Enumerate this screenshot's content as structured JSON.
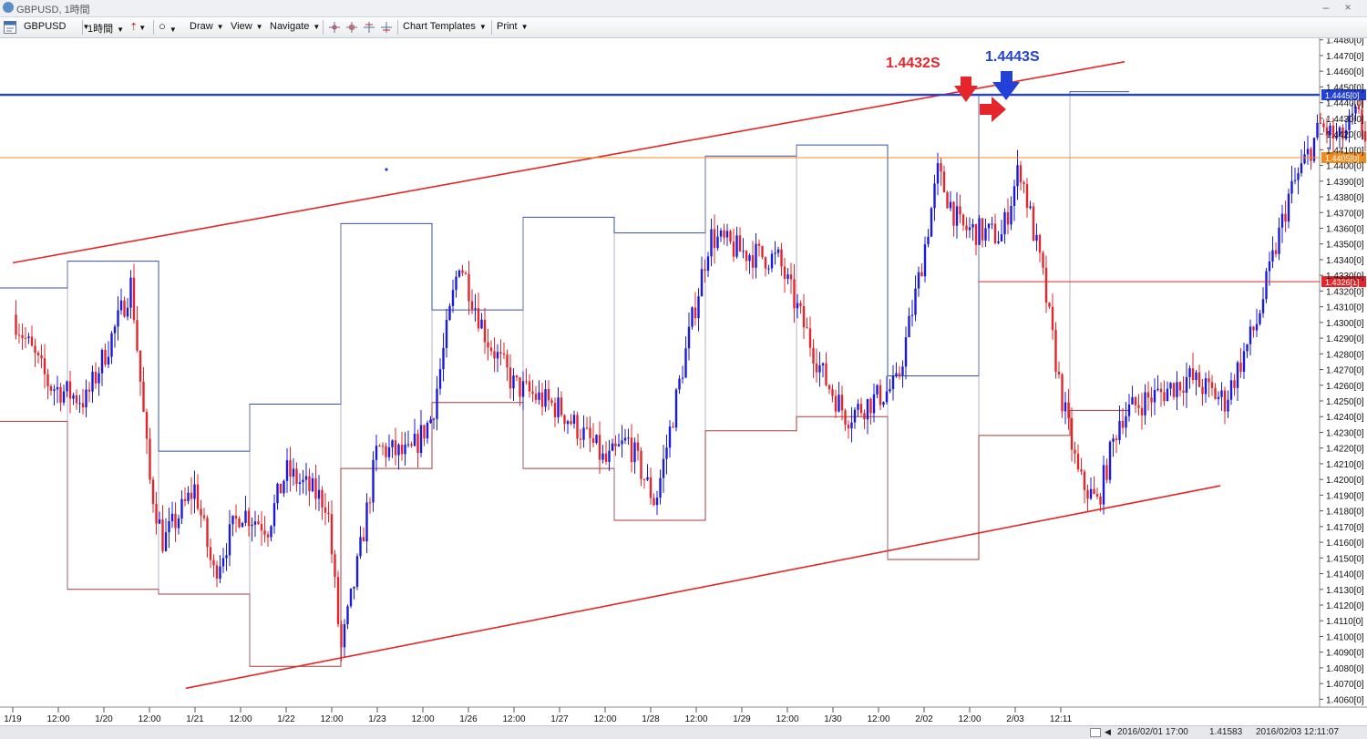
{
  "window": {
    "title": "GBPUSD, 1時間",
    "minimize": "–",
    "close": "×"
  },
  "toolbar": {
    "symbol": "GBPUSD",
    "timeframe": "1時間",
    "draw": "Draw",
    "view": "View",
    "navigate": "Navigate",
    "chart_templates": "Chart Templates",
    "print": "Print"
  },
  "status": {
    "cursor_time": "2016/02/01 17:00",
    "cursor_price": "1.41583",
    "current_time": "2016/02/03 12:11:07"
  },
  "colors": {
    "bull": "#1a1adc",
    "bear": "#e4252b",
    "trend": "#e82424",
    "hline_blue": "#2340d8",
    "hline_orange": "#f08c1e",
    "box_high": "#3650a8",
    "box_low": "#a83a3a"
  },
  "chart_data": {
    "type": "candlestick",
    "symbol": "GBPUSD",
    "timeframe": "1時間",
    "price_axis": {
      "min": 1.4055,
      "max": 1.4481,
      "tick_step": 0.001,
      "label_suffix": "[0]"
    },
    "time_labels": [
      "1/19",
      "12:00",
      "1/20",
      "12:00",
      "1/21",
      "12:00",
      "1/22",
      "12:00",
      "1/23",
      "12:00",
      "1/26",
      "12:00",
      "1/27",
      "12:00",
      "1/28",
      "12:00",
      "1/29",
      "12:00",
      "1/30",
      "12:00",
      "2/02",
      "12:00",
      "2/03",
      "12:11"
    ],
    "current_price_tag": "1.4405[0]",
    "horizontal_lines": [
      {
        "name": "resistance",
        "price": 1.4445,
        "color": "#2340d8",
        "label": "1.4445[0]"
      },
      {
        "name": "current",
        "price": 1.4405,
        "color": "#f08c1e",
        "label": "1.4405[0]"
      },
      {
        "name": "support",
        "price": 1.4326,
        "color": "#e4252b",
        "label": "1.4326[1]"
      }
    ],
    "trendlines": [
      {
        "from": [
          0.0,
          1.4338
        ],
        "to": [
          24.4,
          1.4466
        ]
      },
      {
        "from": [
          3.8,
          1.4067
        ],
        "to": [
          26.5,
          1.4196
        ]
      }
    ],
    "annotations": [
      {
        "text": "1.4432S",
        "color": "#e4252b",
        "price": 1.4432
      },
      {
        "text": "1.4443S",
        "color": "#2340d8",
        "price": 1.4443
      }
    ],
    "daily_high_steps": [
      {
        "day": "1/18",
        "high": 1.4322
      },
      {
        "day": "1/19",
        "high": 1.4339
      },
      {
        "day": "1/20",
        "high": 1.4218
      },
      {
        "day": "1/21",
        "high": 1.4248
      },
      {
        "day": "1/22",
        "high": 1.4363
      },
      {
        "day": "1/25",
        "high": 1.4308
      },
      {
        "day": "1/26",
        "high": 1.4367
      },
      {
        "day": "1/27",
        "high": 1.4357
      },
      {
        "day": "1/28",
        "high": 1.4406
      },
      {
        "day": "1/29",
        "high": 1.4413
      },
      {
        "day": "2/01",
        "high": 1.4266
      },
      {
        "day": "2/02",
        "high": 1.4445
      },
      {
        "day": "2/03",
        "high": 1.4447
      }
    ],
    "daily_low_steps": [
      {
        "day": "1/18",
        "low": 1.4237
      },
      {
        "day": "1/19",
        "low": 1.413
      },
      {
        "day": "1/20",
        "low": 1.4127
      },
      {
        "day": "1/21",
        "low": 1.4081
      },
      {
        "day": "1/22",
        "low": 1.4207
      },
      {
        "day": "1/25",
        "low": 1.4249
      },
      {
        "day": "1/26",
        "low": 1.4207
      },
      {
        "day": "1/27",
        "low": 1.4174
      },
      {
        "day": "1/28",
        "low": 1.4231
      },
      {
        "day": "1/29",
        "low": 1.424
      },
      {
        "day": "2/01",
        "low": 1.4149
      },
      {
        "day": "2/02",
        "low": 1.4228
      },
      {
        "day": "2/03",
        "low": 1.4244
      }
    ],
    "waypoints": [
      [
        0.0,
        1.4305
      ],
      [
        0.8,
        1.426
      ],
      [
        1.6,
        1.425
      ],
      [
        2.3,
        1.43
      ],
      [
        2.6,
        1.4325
      ],
      [
        3.0,
        1.42
      ],
      [
        3.3,
        1.416
      ],
      [
        4.0,
        1.4195
      ],
      [
        4.4,
        1.414
      ],
      [
        5.0,
        1.418
      ],
      [
        5.6,
        1.417
      ],
      [
        6.0,
        1.4205
      ],
      [
        6.9,
        1.4185
      ],
      [
        7.2,
        1.409
      ],
      [
        7.6,
        1.415
      ],
      [
        8.0,
        1.422
      ],
      [
        8.7,
        1.4215
      ],
      [
        9.2,
        1.424
      ],
      [
        9.8,
        1.434
      ],
      [
        10.4,
        1.429
      ],
      [
        11.0,
        1.426
      ],
      [
        12.0,
        1.4245
      ],
      [
        12.8,
        1.422
      ],
      [
        13.0,
        1.421
      ],
      [
        13.5,
        1.4225
      ],
      [
        14.1,
        1.4185
      ],
      [
        14.9,
        1.43
      ],
      [
        15.3,
        1.4355
      ],
      [
        16.0,
        1.4345
      ],
      [
        16.8,
        1.434
      ],
      [
        17.8,
        1.4265
      ],
      [
        18.3,
        1.424
      ],
      [
        19.4,
        1.426
      ],
      [
        19.9,
        1.433
      ],
      [
        20.3,
        1.4395
      ],
      [
        20.8,
        1.436
      ],
      [
        21.7,
        1.4355
      ],
      [
        22.1,
        1.44
      ],
      [
        22.6,
        1.433
      ],
      [
        23.0,
        1.4255
      ],
      [
        23.4,
        1.42
      ],
      [
        23.8,
        1.4185
      ],
      [
        24.3,
        1.424
      ],
      [
        24.8,
        1.425
      ],
      [
        25.2,
        1.4255
      ],
      [
        25.8,
        1.4265
      ],
      [
        26.6,
        1.425
      ],
      [
        27.3,
        1.43
      ],
      [
        28.0,
        1.438
      ],
      [
        28.7,
        1.4425
      ],
      [
        29.1,
        1.4415
      ],
      [
        29.5,
        1.4432
      ],
      [
        30.1,
        1.439
      ],
      [
        30.6,
        1.437
      ],
      [
        31.1,
        1.442
      ],
      [
        31.6,
        1.4375
      ],
      [
        32.1,
        1.4412
      ],
      [
        32.7,
        1.4405
      ],
      [
        33.2,
        1.4402
      ]
    ]
  }
}
